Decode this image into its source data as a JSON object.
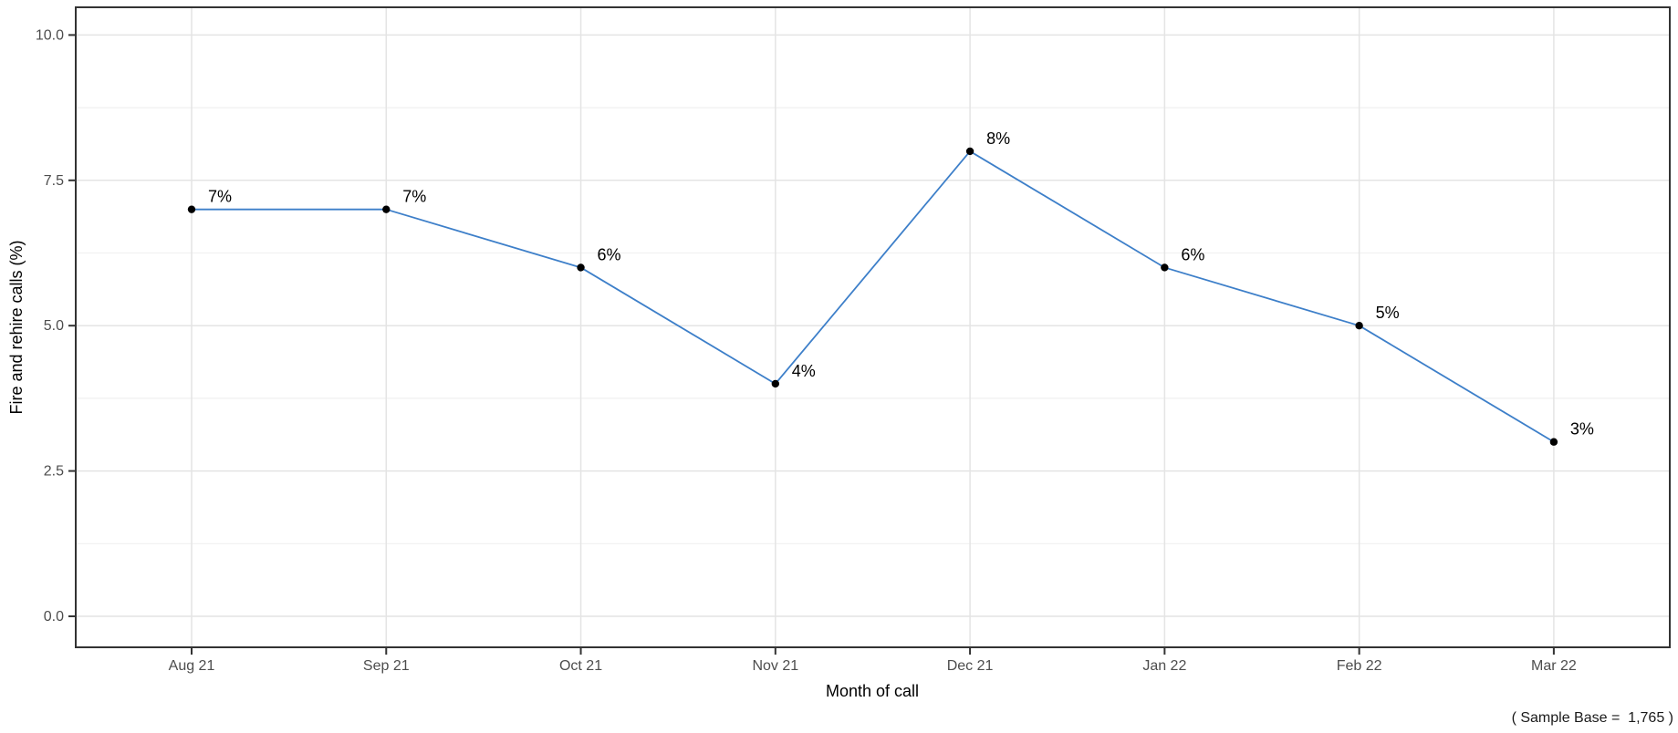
{
  "chart_data": {
    "type": "line",
    "title": "",
    "categories": [
      "Aug 21",
      "Sep 21",
      "Oct 21",
      "Nov 21",
      "Dec 21",
      "Jan 22",
      "Feb 22",
      "Mar 22"
    ],
    "values": [
      7,
      7,
      6,
      4,
      8,
      6,
      5,
      3
    ],
    "point_labels": [
      "7%",
      "7%",
      "6%",
      "4%",
      "8%",
      "6%",
      "5%",
      "3%"
    ],
    "series_name": "Fire and rehire calls",
    "xlabel": "Month of call",
    "ylabel": "Fire and rehire calls (%)",
    "ylim": [
      0,
      10.5
    ],
    "yticks": [
      0,
      2.5,
      5,
      7.5,
      10
    ],
    "ytick_labels": [
      "0.0",
      "2.5",
      "5.0",
      "7.5",
      "10.0"
    ],
    "grid": "major-and-minor-horizontal, major-vertical",
    "legend": "none",
    "annotation": "( Sample Base =  1,765 )",
    "colors": {
      "line": "#3d7fc9",
      "point": "#000000",
      "grid_major": "#e4e4e4",
      "grid_minor": "#f1f1f1",
      "panel_border": "#333333",
      "tick_mark": "#333333",
      "tick_text": "#4d4d4d",
      "label_text": "#000000",
      "background": "#ffffff"
    }
  }
}
